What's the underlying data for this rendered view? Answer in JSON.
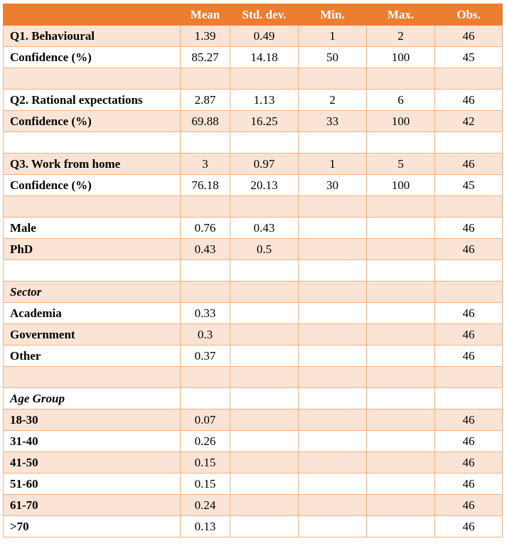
{
  "table": {
    "headers": [
      "",
      "Mean",
      "Std. dev.",
      "Min.",
      "Max.",
      "Obs."
    ],
    "rows": [
      {
        "label": "Q1. Behavioural",
        "section": false,
        "values": [
          "1.39",
          "0.49",
          "1",
          "2",
          "46"
        ]
      },
      {
        "label": "Confidence (%)",
        "section": false,
        "values": [
          "85.27",
          "14.18",
          "50",
          "100",
          "45"
        ]
      },
      {
        "label": "",
        "section": false,
        "values": [
          "",
          "",
          "",
          "",
          ""
        ]
      },
      {
        "label": "Q2. Rational expectations",
        "section": false,
        "values": [
          "2.87",
          "1.13",
          "2",
          "6",
          "46"
        ]
      },
      {
        "label": "Confidence (%)",
        "section": false,
        "values": [
          "69.88",
          "16.25",
          "33",
          "100",
          "42"
        ]
      },
      {
        "label": "",
        "section": false,
        "values": [
          "",
          "",
          "",
          "",
          ""
        ]
      },
      {
        "label": "Q3. Work from home",
        "section": false,
        "values": [
          "3",
          "0.97",
          "1",
          "5",
          "46"
        ]
      },
      {
        "label": "Confidence (%)",
        "section": false,
        "values": [
          "76.18",
          "20.13",
          "30",
          "100",
          "45"
        ]
      },
      {
        "label": "",
        "section": false,
        "values": [
          "",
          "",
          "",
          "",
          ""
        ]
      },
      {
        "label": "Male",
        "section": false,
        "values": [
          "0.76",
          "0.43",
          "",
          "",
          "46"
        ]
      },
      {
        "label": "PhD",
        "section": false,
        "values": [
          "0.43",
          "0.5",
          "",
          "",
          "46"
        ]
      },
      {
        "label": "",
        "section": false,
        "values": [
          "",
          "",
          "",
          "",
          ""
        ]
      },
      {
        "label": "Sector",
        "section": true,
        "values": [
          "",
          "",
          "",
          "",
          ""
        ]
      },
      {
        "label": "Academia",
        "section": false,
        "values": [
          "0.33",
          "",
          "",
          "",
          "46"
        ]
      },
      {
        "label": "Government",
        "section": false,
        "values": [
          "0.3",
          "",
          "",
          "",
          "46"
        ]
      },
      {
        "label": "Other",
        "section": false,
        "values": [
          "0.37",
          "",
          "",
          "",
          "46"
        ]
      },
      {
        "label": "",
        "section": false,
        "values": [
          "",
          "",
          "",
          "",
          ""
        ]
      },
      {
        "label": "Age Group",
        "section": true,
        "values": [
          "",
          "",
          "",
          "",
          ""
        ]
      },
      {
        "label": "18-30",
        "section": false,
        "values": [
          "0.07",
          "",
          "",
          "",
          "46"
        ]
      },
      {
        "label": "31-40",
        "section": false,
        "values": [
          "0.26",
          "",
          "",
          "",
          "46"
        ]
      },
      {
        "label": "41-50",
        "section": false,
        "values": [
          "0.15",
          "",
          "",
          "",
          "46"
        ]
      },
      {
        "label": "51-60",
        "section": false,
        "values": [
          "0.15",
          "",
          "",
          "",
          "46"
        ]
      },
      {
        "label": "61-70",
        "section": false,
        "values": [
          "0.24",
          "",
          "",
          "",
          "46"
        ]
      },
      {
        "label": ">70",
        "section": false,
        "values": [
          "0.13",
          "",
          "",
          "",
          "46"
        ]
      }
    ]
  },
  "colors": {
    "header_bg": "#ed7d31",
    "header_text": "#ffffff",
    "band_light": "#fbe4d5",
    "border": "#f4b183"
  }
}
